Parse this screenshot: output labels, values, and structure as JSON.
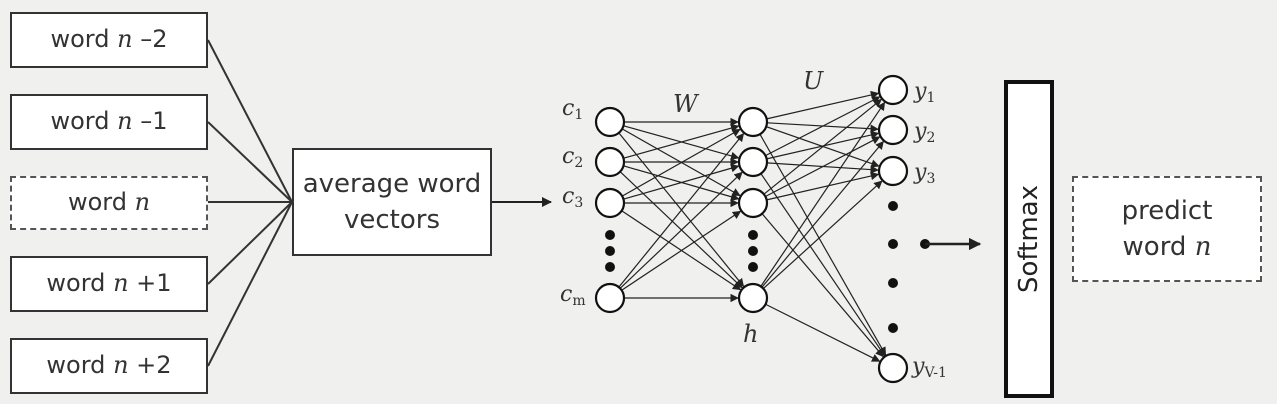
{
  "context_words": [
    {
      "word": "word",
      "var": "n",
      "offset": "–2"
    },
    {
      "word": "word",
      "var": "n",
      "offset": "–1"
    },
    {
      "word": "word",
      "var": "n",
      "offset": ""
    },
    {
      "word": "word",
      "var": "n",
      "offset": "+1"
    },
    {
      "word": "word",
      "var": "n",
      "offset": "+2"
    }
  ],
  "average_box": {
    "line1": "average word",
    "line2": "vectors"
  },
  "input_layer": {
    "labels": [
      {
        "base": "c",
        "sub": "1"
      },
      {
        "base": "c",
        "sub": "2"
      },
      {
        "base": "c",
        "sub": "3"
      },
      {
        "base": "c",
        "sub": "m"
      }
    ]
  },
  "weights": {
    "w": "W",
    "u": "U"
  },
  "hidden_layer": {
    "label": "h"
  },
  "output_layer": {
    "labels": [
      {
        "base": "y",
        "sub": "1"
      },
      {
        "base": "y",
        "sub": "2"
      },
      {
        "base": "y",
        "sub": "3"
      },
      {
        "base": "y",
        "sub": "V-1"
      }
    ]
  },
  "softmax": {
    "label": "Softmax"
  },
  "predict_box": {
    "line1": "predict",
    "word": "word",
    "var": "n"
  }
}
